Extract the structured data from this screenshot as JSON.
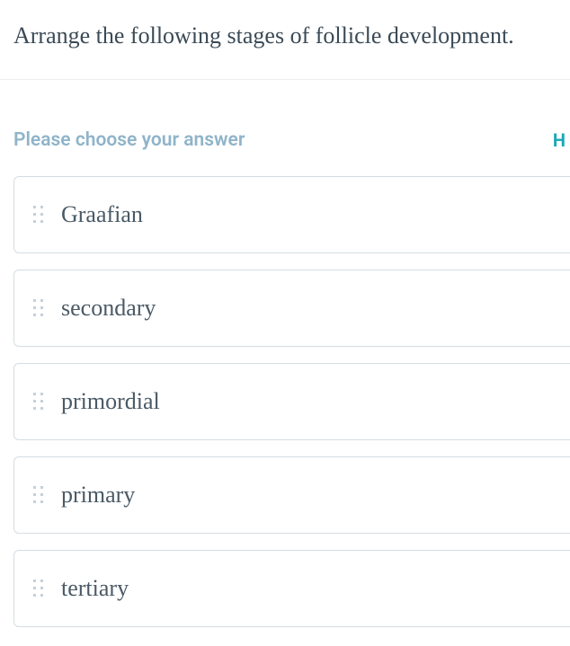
{
  "question": {
    "text": "Arrange the following stages of follicle development."
  },
  "instruction": "Please choose your answer",
  "hint_label": "H",
  "options": [
    {
      "label": "Graafian"
    },
    {
      "label": "secondary"
    },
    {
      "label": "primordial"
    },
    {
      "label": "primary"
    },
    {
      "label": "tertiary"
    }
  ],
  "colors": {
    "question_text": "#3a4a56",
    "instruction_text": "#8fb4c9",
    "hint_text": "#1ba8b8",
    "option_text": "#4a5a66",
    "option_border": "#d5dde2",
    "drag_dot": "#c5d0d8"
  }
}
